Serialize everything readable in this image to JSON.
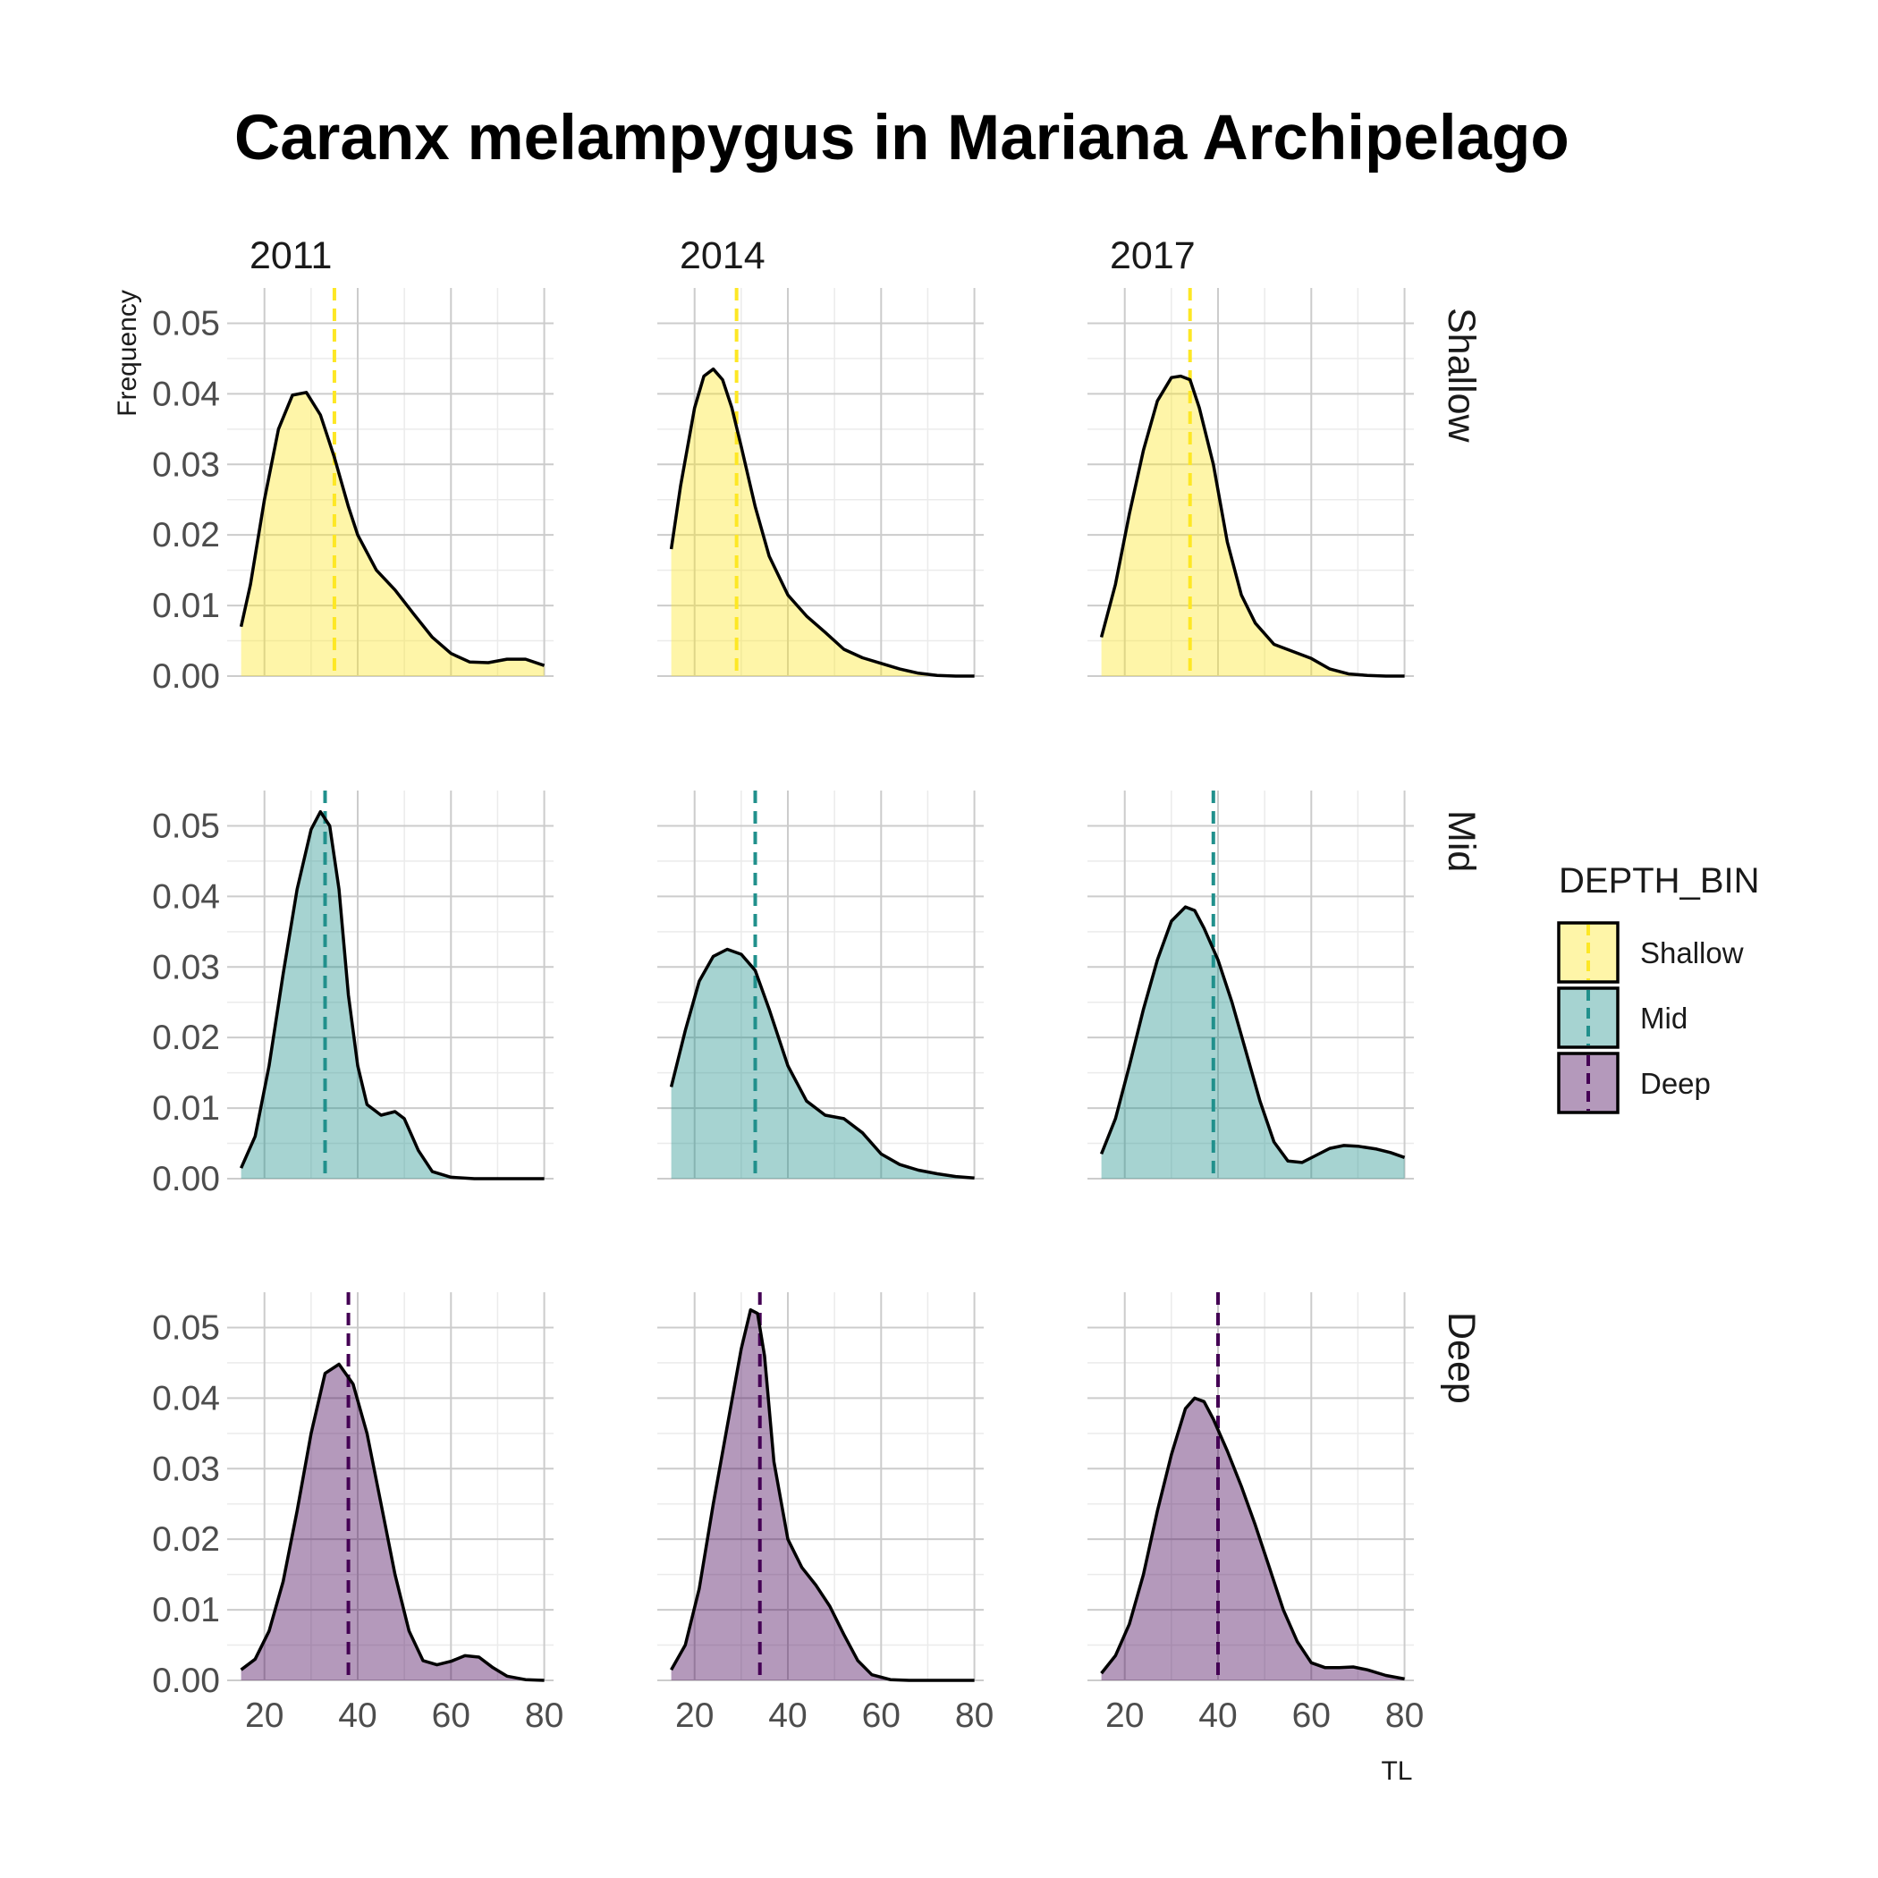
{
  "chart_data": {
    "type": "area",
    "title": "Caranx melampygus in Mariana Archipelago",
    "xlabel": "TL",
    "ylabel": "Frequency",
    "xlim": [
      12,
      82
    ],
    "ylim": [
      0,
      0.055
    ],
    "x_ticks": [
      "20",
      "40",
      "60",
      "80"
    ],
    "y_ticks": [
      "0.00",
      "0.01",
      "0.02",
      "0.03",
      "0.04",
      "0.05"
    ],
    "x_tick_values": [
      20,
      40,
      60,
      80
    ],
    "y_tick_values": [
      0,
      0.01,
      0.02,
      0.03,
      0.04,
      0.05
    ],
    "grid": true,
    "legend_position": "right",
    "facet_columns": [
      "2011",
      "2014",
      "2017"
    ],
    "facet_rows": [
      "Shallow",
      "Mid",
      "Deep"
    ],
    "legend": {
      "title": "DEPTH_BIN",
      "entries": [
        {
          "label": "Shallow",
          "color": "#fde725"
        },
        {
          "label": "Mid",
          "color": "#21908c"
        },
        {
          "label": "Deep",
          "color": "#440154"
        }
      ]
    },
    "panels": [
      {
        "year": "2011",
        "depth": "Shallow",
        "mean": 35,
        "x": [
          15,
          17,
          20,
          23,
          26,
          29,
          32,
          35,
          38,
          40,
          44,
          48,
          52,
          56,
          60,
          64,
          68,
          72,
          76,
          80
        ],
        "y": [
          0.007,
          0.013,
          0.025,
          0.035,
          0.0398,
          0.0402,
          0.037,
          0.031,
          0.024,
          0.02,
          0.015,
          0.0122,
          0.0088,
          0.0055,
          0.0032,
          0.002,
          0.0019,
          0.0024,
          0.0024,
          0.0015
        ]
      },
      {
        "year": "2014",
        "depth": "Shallow",
        "mean": 29,
        "x": [
          15,
          17,
          20,
          22,
          24,
          26,
          28,
          30,
          33,
          36,
          40,
          44,
          48,
          52,
          56,
          60,
          64,
          68,
          72,
          76,
          80
        ],
        "y": [
          0.018,
          0.027,
          0.038,
          0.0425,
          0.0435,
          0.042,
          0.038,
          0.0325,
          0.024,
          0.017,
          0.0115,
          0.0085,
          0.0062,
          0.0038,
          0.0026,
          0.0018,
          0.001,
          0.0004,
          0.0001,
          0,
          0
        ]
      },
      {
        "year": "2017",
        "depth": "Shallow",
        "mean": 34,
        "x": [
          15,
          18,
          21,
          24,
          27,
          30,
          32,
          34,
          36,
          39,
          42,
          45,
          48,
          52,
          56,
          60,
          64,
          68,
          72,
          76,
          80
        ],
        "y": [
          0.0055,
          0.013,
          0.023,
          0.032,
          0.039,
          0.0423,
          0.0425,
          0.042,
          0.038,
          0.03,
          0.019,
          0.0115,
          0.0075,
          0.0045,
          0.0035,
          0.0025,
          0.001,
          0.0003,
          0.0001,
          0,
          0
        ]
      },
      {
        "year": "2011",
        "depth": "Mid",
        "mean": 33,
        "x": [
          15,
          18,
          21,
          24,
          27,
          30,
          32,
          34,
          36,
          38,
          40,
          42,
          45,
          48,
          50,
          53,
          56,
          60,
          65,
          70,
          75,
          80
        ],
        "y": [
          0.0015,
          0.006,
          0.016,
          0.029,
          0.041,
          0.0495,
          0.052,
          0.05,
          0.041,
          0.026,
          0.016,
          0.0105,
          0.009,
          0.0095,
          0.0085,
          0.004,
          0.001,
          0.0002,
          0,
          0,
          0,
          0
        ]
      },
      {
        "year": "2014",
        "depth": "Mid",
        "mean": 33,
        "x": [
          15,
          18,
          21,
          24,
          27,
          30,
          33,
          36,
          40,
          44,
          48,
          52,
          56,
          60,
          64,
          68,
          72,
          76,
          80
        ],
        "y": [
          0.013,
          0.021,
          0.028,
          0.0315,
          0.0325,
          0.0318,
          0.0295,
          0.024,
          0.016,
          0.011,
          0.009,
          0.0085,
          0.0065,
          0.0035,
          0.002,
          0.0012,
          0.0007,
          0.0003,
          0.0001
        ]
      },
      {
        "year": "2017",
        "depth": "Mid",
        "mean": 39,
        "x": [
          15,
          18,
          21,
          24,
          27,
          30,
          33,
          35,
          37,
          40,
          43,
          46,
          49,
          52,
          55,
          58,
          61,
          64,
          67,
          70,
          74,
          77,
          80
        ],
        "y": [
          0.0035,
          0.0085,
          0.016,
          0.024,
          0.031,
          0.0365,
          0.0385,
          0.038,
          0.0355,
          0.031,
          0.025,
          0.018,
          0.011,
          0.0052,
          0.0025,
          0.0023,
          0.0033,
          0.0043,
          0.0047,
          0.0046,
          0.0042,
          0.0037,
          0.003
        ]
      },
      {
        "year": "2011",
        "depth": "Deep",
        "mean": 38,
        "x": [
          15,
          18,
          21,
          24,
          27,
          30,
          33,
          36,
          39,
          42,
          45,
          48,
          51,
          54,
          57,
          60,
          63,
          66,
          69,
          72,
          76,
          80
        ],
        "y": [
          0.0015,
          0.003,
          0.007,
          0.014,
          0.024,
          0.035,
          0.0435,
          0.0448,
          0.042,
          0.035,
          0.025,
          0.015,
          0.007,
          0.0028,
          0.0022,
          0.0027,
          0.0035,
          0.0033,
          0.0018,
          0.0006,
          0.0001,
          0
        ]
      },
      {
        "year": "2014",
        "depth": "Deep",
        "mean": 34,
        "x": [
          15,
          18,
          21,
          24,
          27,
          30,
          32,
          33.5,
          35,
          37,
          40,
          43,
          46,
          49,
          52,
          55,
          58,
          62,
          66,
          70,
          75,
          80
        ],
        "y": [
          0.0015,
          0.005,
          0.013,
          0.025,
          0.036,
          0.047,
          0.0525,
          0.052,
          0.046,
          0.031,
          0.02,
          0.016,
          0.0135,
          0.0105,
          0.0065,
          0.0028,
          0.0008,
          0.0001,
          0,
          0,
          0,
          0
        ]
      },
      {
        "year": "2017",
        "depth": "Deep",
        "mean": 40,
        "x": [
          15,
          18,
          21,
          24,
          27,
          30,
          33,
          35,
          37,
          39,
          42,
          45,
          48,
          51,
          54,
          57,
          60,
          63,
          66,
          69,
          72,
          76,
          80
        ],
        "y": [
          0.001,
          0.0035,
          0.008,
          0.015,
          0.024,
          0.032,
          0.0385,
          0.04,
          0.0395,
          0.037,
          0.0325,
          0.0275,
          0.022,
          0.016,
          0.01,
          0.0055,
          0.0025,
          0.0018,
          0.0018,
          0.0019,
          0.0015,
          0.0007,
          0.0002
        ]
      }
    ]
  }
}
